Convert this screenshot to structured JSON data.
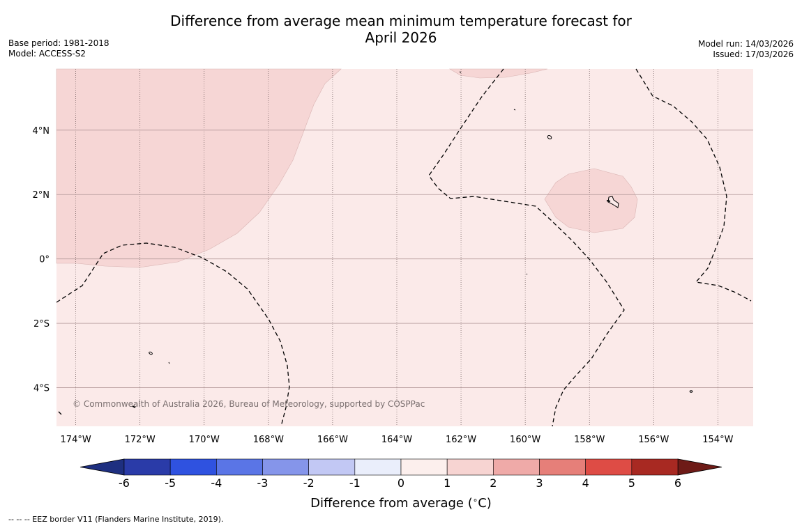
{
  "title": {
    "line1": "Difference from average mean minimum temperature forecast for",
    "line2": "April 2026"
  },
  "meta_left": {
    "base_period": "Base period: 1981-2018",
    "model": "Model: ACCESS-S2"
  },
  "meta_right": {
    "model_run": "Model run: 14/03/2026",
    "issued": "Issued: 17/03/2026"
  },
  "map": {
    "lon_range": [
      -174.6,
      -152.9
    ],
    "lat_range": [
      -5.2,
      5.9
    ],
    "lon_ticks": [
      -174,
      -172,
      -170,
      -168,
      -166,
      -164,
      -162,
      -160,
      -158,
      -156,
      -154
    ],
    "lon_labels": [
      "174°W",
      "172°W",
      "170°W",
      "168°W",
      "166°W",
      "164°W",
      "162°W",
      "160°W",
      "158°W",
      "156°W",
      "154°W"
    ],
    "lat_ticks": [
      4,
      2,
      0,
      -2,
      -4
    ],
    "lat_labels": [
      "4°N",
      "2°N",
      "0°",
      "2°S",
      "4°S"
    ],
    "background_anomaly_range": "0 to 1",
    "warm_patch_anomaly_range": "1 to 2",
    "copyright": "© Commonwealth of Australia 2026, Bureau of Meteorology, supported by COSPPac",
    "colors": {
      "class_0_1": "#fbeae9",
      "class_1_2": "#f6d6d5",
      "eez_line": "#000000",
      "gridline": "#b49a9a"
    }
  },
  "colorbar": {
    "ticks": [
      "-6",
      "-5",
      "-4",
      "-3",
      "-2",
      "-1",
      "0",
      "1",
      "2",
      "3",
      "4",
      "5",
      "6"
    ],
    "colors": [
      "#2a3ba8",
      "#2f52e0",
      "#5a75e6",
      "#8595ea",
      "#c2c8f4",
      "#eaeefb",
      "#fcefed",
      "#f7d4d2",
      "#efaaa8",
      "#e67f79",
      "#de4c45",
      "#a82922"
    ],
    "extend_low_color": "#1e2f80",
    "extend_high_color": "#6e1b17",
    "label": "Difference from average (",
    "degree_symbol": "∘",
    "label_unit": "C)"
  },
  "footnote": "--  --  -- EEZ border V11 (Flanders Marine Institute, 2019)."
}
